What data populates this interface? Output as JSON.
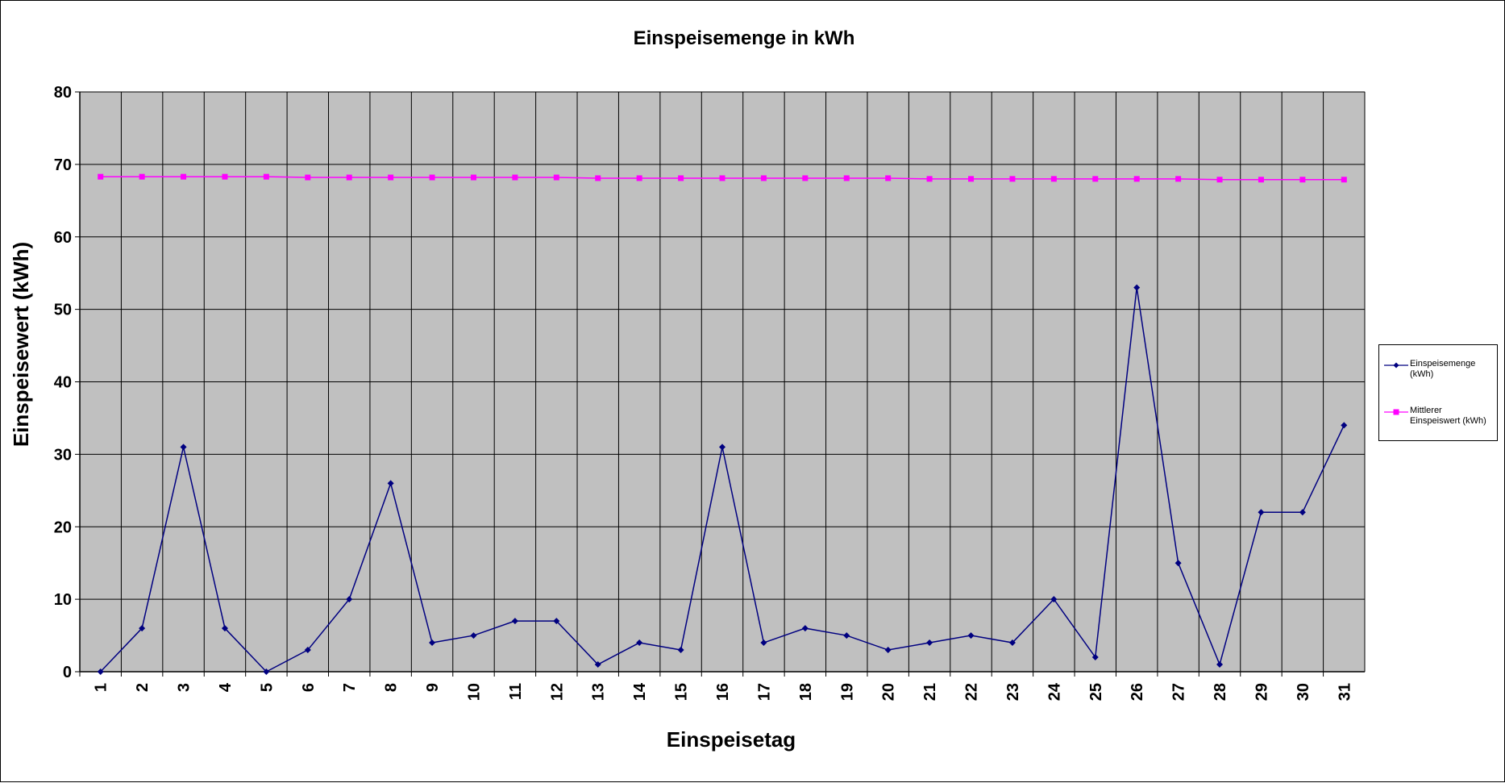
{
  "chart_data": {
    "type": "line",
    "title": "Einspeisemenge in kWh",
    "xlabel": "Einspeisetag",
    "ylabel": "Einspeisewert  (kWh)",
    "ylim": [
      0,
      80
    ],
    "yticks": [
      0,
      10,
      20,
      30,
      40,
      50,
      60,
      70,
      80
    ],
    "grid": true,
    "legend_position": "right",
    "categories": [
      "1",
      "2",
      "3",
      "4",
      "5",
      "6",
      "7",
      "8",
      "9",
      "10",
      "11",
      "12",
      "13",
      "14",
      "15",
      "16",
      "17",
      "18",
      "19",
      "20",
      "21",
      "22",
      "23",
      "24",
      "25",
      "26",
      "27",
      "28",
      "29",
      "30",
      "31"
    ],
    "series": [
      {
        "name": "Einspeisemenge (kWh)",
        "legend_lines": [
          "Einspeisemenge",
          "(kWh)"
        ],
        "color": "#000080",
        "marker": "diamond",
        "values": [
          0,
          6,
          31,
          6,
          0,
          3,
          10,
          26,
          4,
          5,
          7,
          7,
          1,
          4,
          3,
          31,
          4,
          6,
          5,
          3,
          4,
          5,
          4,
          10,
          2,
          53,
          15,
          1,
          22,
          22,
          34
        ]
      },
      {
        "name": "Mittlerer Einspeiswert (kWh)",
        "legend_lines": [
          "Mittlerer",
          "Einspeiswert (kWh)"
        ],
        "color": "#ff00ff",
        "marker": "square",
        "values": [
          68.3,
          68.3,
          68.3,
          68.3,
          68.3,
          68.2,
          68.2,
          68.2,
          68.2,
          68.2,
          68.2,
          68.2,
          68.1,
          68.1,
          68.1,
          68.1,
          68.1,
          68.1,
          68.1,
          68.1,
          68.0,
          68.0,
          68.0,
          68.0,
          68.0,
          68.0,
          68.0,
          67.9,
          67.9,
          67.9,
          67.9
        ]
      }
    ],
    "colors": {
      "plot_background": "#c0c0c0",
      "grid": "#000000"
    }
  }
}
